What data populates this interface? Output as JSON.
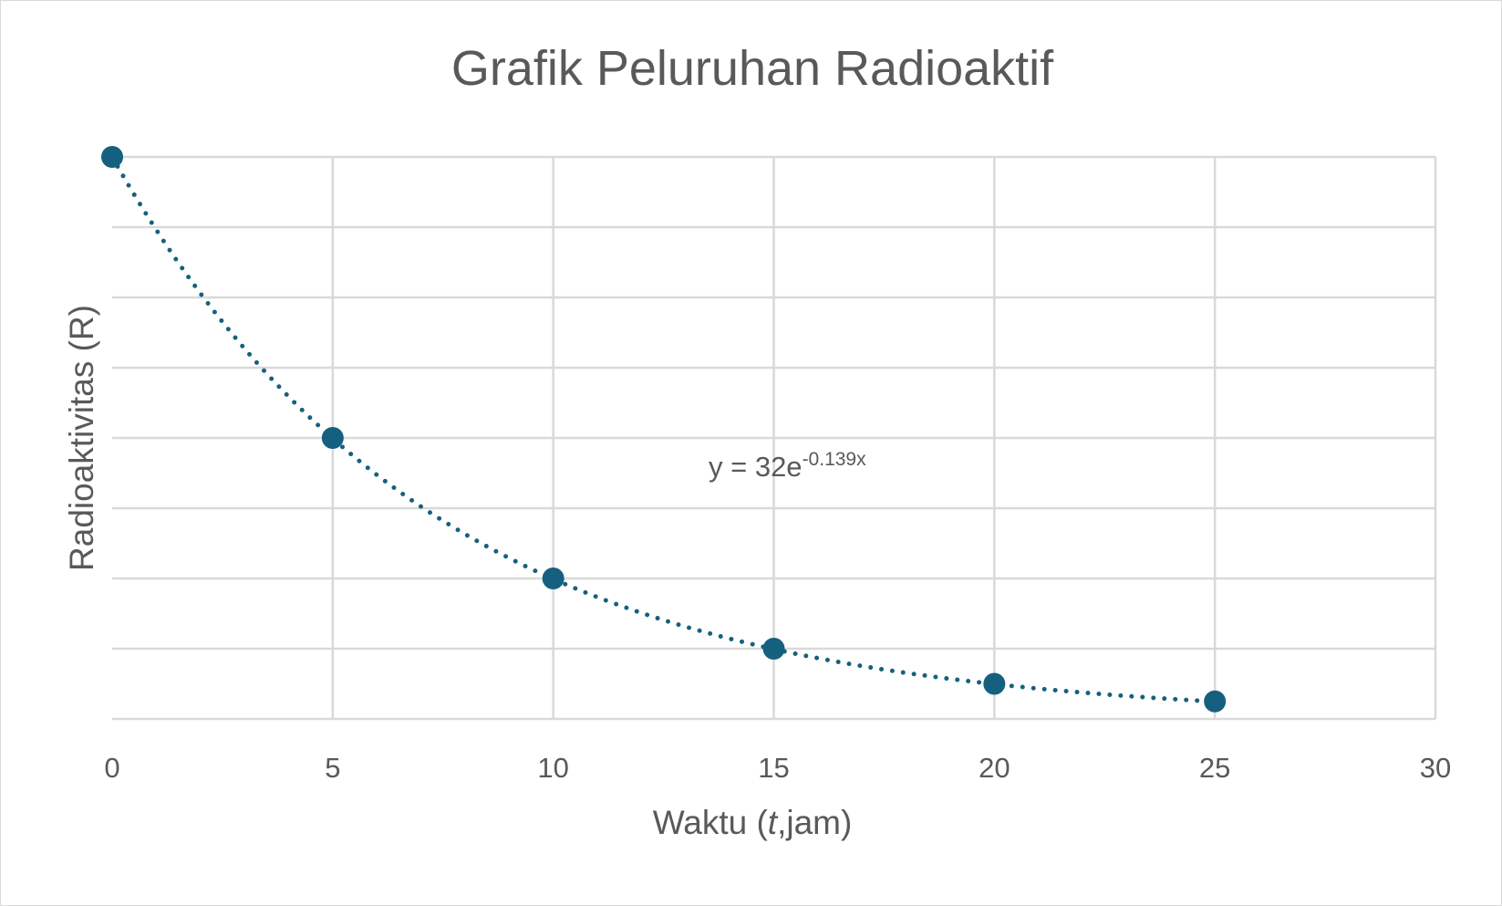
{
  "chart_data": {
    "type": "scatter",
    "title": "Grafik Peluruhan Radioaktif",
    "xlabel": "Waktu (t,jam)",
    "ylabel": "Radioaktivitas (R)",
    "xlim": [
      0,
      30
    ],
    "ylim": [
      0,
      32
    ],
    "x_ticks": [
      0,
      5,
      10,
      15,
      20,
      25,
      30
    ],
    "y_gridlines": [
      0,
      4,
      8,
      12,
      16,
      20,
      24,
      28,
      32
    ],
    "y_tick_labels_shown": false,
    "grid": true,
    "legend": "none",
    "series": [
      {
        "x": [
          0,
          5,
          10,
          15,
          20,
          25
        ],
        "y": [
          32,
          16,
          8,
          4,
          2,
          1
        ],
        "color": "#16607f"
      }
    ],
    "trendline": {
      "kind": "exponential",
      "style": "dotted",
      "a": 32,
      "b": -0.139,
      "color": "#16607f",
      "label_main": "y = 32e",
      "label_exponent": "-0.139x"
    },
    "colors": {
      "grid": "#d9d9d9",
      "text": "#595959",
      "marker": "#16607f"
    }
  }
}
